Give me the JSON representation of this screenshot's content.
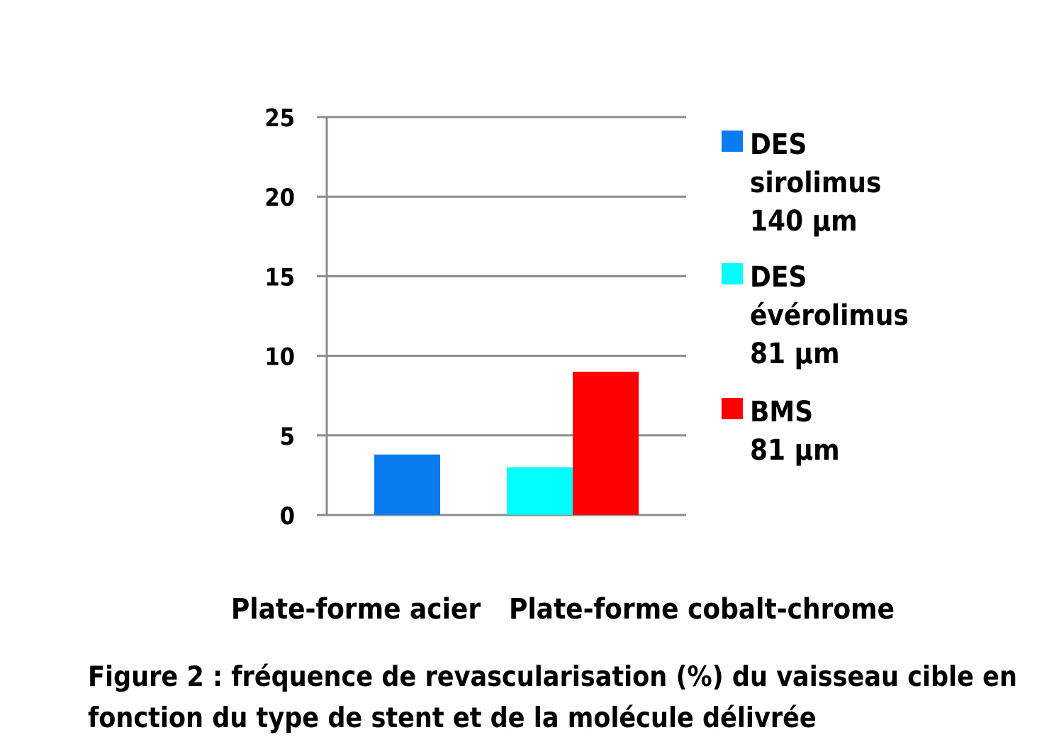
{
  "chart_data": {
    "type": "bar",
    "categories": [
      "Plate-forme acier",
      "Plate-forme cobalt-chrome"
    ],
    "series": [
      {
        "name": "DES sirolimus 140 µm",
        "legend_lines": [
          "DES",
          "sirolimus",
          "140 µm"
        ],
        "color": "#0a7cf0",
        "values": [
          3.8,
          null
        ]
      },
      {
        "name": "DES évérolimus 81 µm",
        "legend_lines": [
          "DES",
          "évérolimus",
          "81 µm"
        ],
        "color": "#00ffff",
        "values": [
          null,
          3.0
        ]
      },
      {
        "name": "BMS 81 µm",
        "legend_lines": [
          "BMS",
          "81 µm"
        ],
        "color": "#ff0000",
        "values": [
          null,
          9.0
        ]
      }
    ],
    "ylim": [
      0,
      25
    ],
    "yticks": [
      "0",
      "5",
      "10",
      "15",
      "20",
      "25"
    ],
    "grid": true,
    "legend_position": "right",
    "xlabel": "",
    "ylabel": "",
    "title": ""
  },
  "caption": {
    "line1": "Figure 2 : fréquence de revascularisation (%) du vaisseau cible en",
    "line2": "fonction du type de stent et de la molécule délivrée"
  }
}
